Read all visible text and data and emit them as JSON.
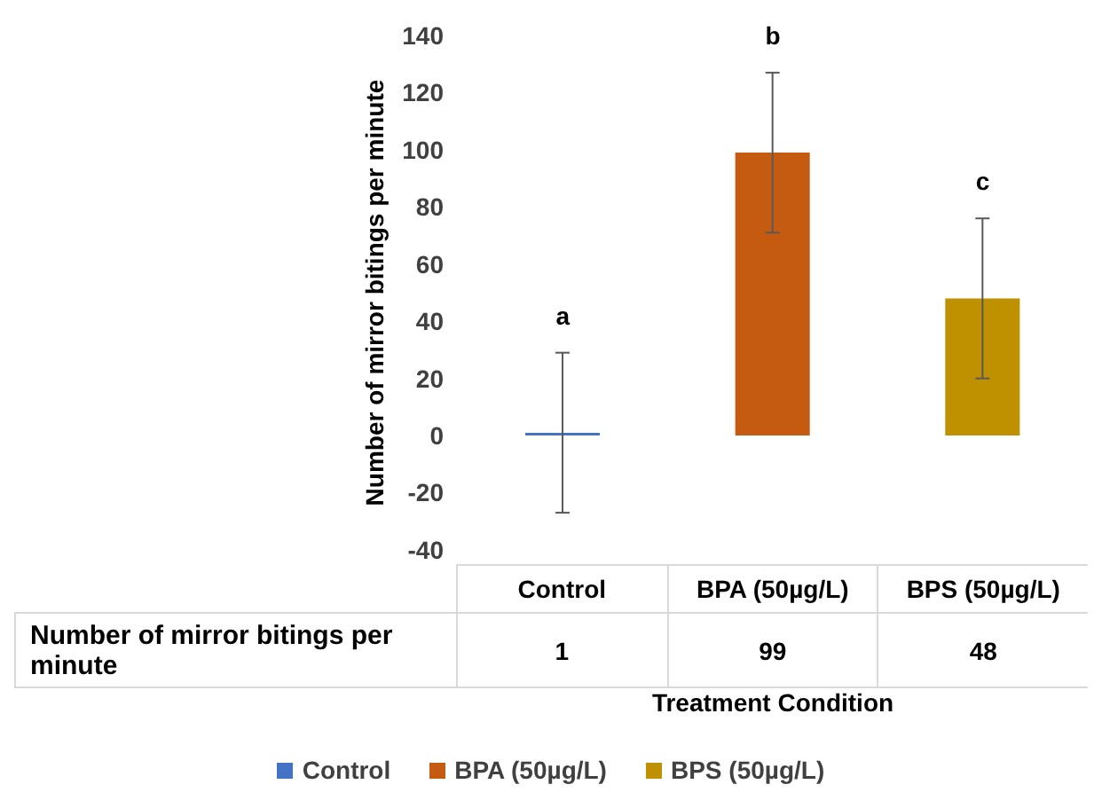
{
  "chart_data": {
    "type": "bar",
    "ylabel": "Number of mirror bitings per minute",
    "xlabel": "Treatment Condition",
    "categories": [
      "Control",
      "BPA (50µg/L)",
      "BPS (50µg/L)"
    ],
    "series": [
      {
        "name": "Number of mirror bitings per minute",
        "colors": [
          "#4472c4",
          "#c55a11",
          "#bf9000"
        ],
        "values": [
          1,
          99,
          48
        ],
        "errors": [
          28,
          28,
          28
        ]
      }
    ],
    "ylim": [
      -40,
      140
    ],
    "yticks": [
      -40,
      -20,
      0,
      20,
      40,
      60,
      80,
      100,
      120,
      140
    ],
    "grid": false,
    "legend": "bottom",
    "data_labels": true,
    "annotations": [
      "a",
      "b",
      "c"
    ]
  }
}
